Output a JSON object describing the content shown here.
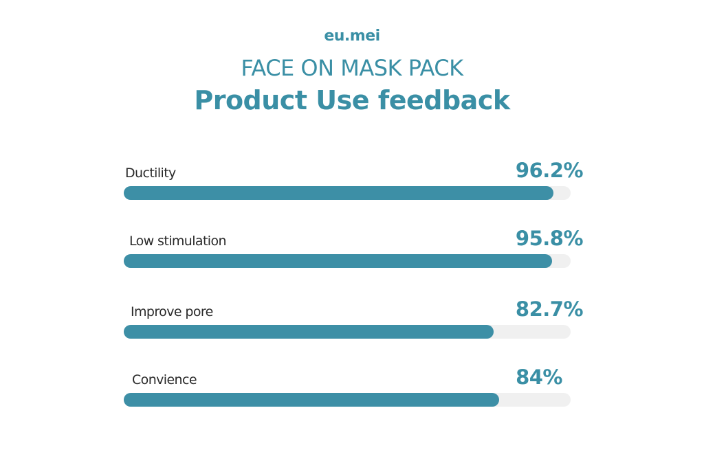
{
  "brand": "eu.mei",
  "header": {
    "subtitle": "FACE ON MASK PACK",
    "title": "Product Use feedback"
  },
  "colors": {
    "accent": "#3d8fa6",
    "track": "#f0f0f0",
    "label": "#2a2a2a"
  },
  "chart_data": {
    "type": "bar",
    "orientation": "horizontal",
    "title": "Product Use feedback",
    "categories": [
      "Ductility",
      "Low stimulation",
      "Improve pore",
      "Convience"
    ],
    "values": [
      96.2,
      95.8,
      82.7,
      84
    ],
    "value_labels": [
      "96.2%",
      "95.8%",
      "82.7%",
      "84%"
    ],
    "xlim": [
      0,
      100
    ]
  }
}
